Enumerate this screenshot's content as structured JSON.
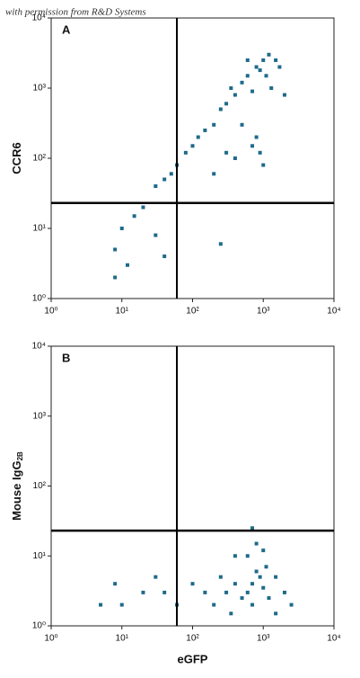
{
  "watermark": "with permission from R&D Systems",
  "chart_data": [
    {
      "type": "scatter",
      "panel_label": "A",
      "y_label": "CCR6",
      "color": "#1f6a8a",
      "log_x": true,
      "log_y": true,
      "xlim": [
        1,
        10000
      ],
      "ylim": [
        1,
        10000
      ],
      "xticks": [
        {
          "value": 1,
          "label": "10⁰"
        },
        {
          "value": 10,
          "label": "10¹"
        },
        {
          "value": 100,
          "label": "10²"
        },
        {
          "value": 1000,
          "label": "10³"
        },
        {
          "value": 10000,
          "label": "10⁴"
        }
      ],
      "yticks": [
        {
          "value": 1,
          "label": "10⁰"
        },
        {
          "value": 10,
          "label": "10¹"
        },
        {
          "value": 100,
          "label": "10²"
        },
        {
          "value": 1000,
          "label": "10³"
        },
        {
          "value": 10000,
          "label": "10⁴"
        }
      ],
      "gates": {
        "x": 60,
        "y": 23
      },
      "x": [
        800,
        1000,
        600,
        1200,
        500,
        900,
        1500,
        700,
        400,
        1100,
        300,
        250,
        200,
        150,
        120,
        100,
        80,
        60,
        50,
        40,
        30,
        700,
        900,
        800,
        500,
        400,
        1000,
        300,
        200,
        20,
        15,
        10,
        8,
        12,
        30,
        40,
        250,
        8,
        1300,
        2000,
        1700,
        600,
        350
      ],
      "y": [
        2000,
        2500,
        1500,
        3000,
        1200,
        1800,
        2500,
        900,
        800,
        1500,
        600,
        500,
        300,
        250,
        200,
        150,
        120,
        80,
        60,
        50,
        40,
        150,
        120,
        200,
        300,
        100,
        80,
        120,
        60,
        20,
        15,
        10,
        5,
        3,
        8,
        4,
        6,
        2,
        1000,
        800,
        2000,
        2500,
        1000
      ]
    },
    {
      "type": "scatter",
      "panel_label": "B",
      "y_label": "Mouse IgG",
      "y_label_sub": "2B",
      "x_label": "eGFP",
      "color": "#1f6a8a",
      "log_x": true,
      "log_y": true,
      "xlim": [
        1,
        10000
      ],
      "ylim": [
        1,
        10000
      ],
      "xticks": [
        {
          "value": 1,
          "label": "10⁰"
        },
        {
          "value": 10,
          "label": "10¹"
        },
        {
          "value": 100,
          "label": "10²"
        },
        {
          "value": 1000,
          "label": "10³"
        },
        {
          "value": 10000,
          "label": "10⁴"
        }
      ],
      "yticks": [
        {
          "value": 1,
          "label": "10⁰"
        },
        {
          "value": 10,
          "label": "10¹"
        },
        {
          "value": 100,
          "label": "10²"
        },
        {
          "value": 1000,
          "label": "10³"
        },
        {
          "value": 10000,
          "label": "10⁴"
        }
      ],
      "gates": {
        "x": 60,
        "y": 23
      },
      "x": [
        700,
        900,
        600,
        1000,
        500,
        800,
        400,
        1200,
        300,
        1500,
        200,
        700,
        1100,
        250,
        150,
        100,
        60,
        40,
        20,
        10,
        8,
        30,
        5,
        600,
        800,
        1000,
        400,
        2000,
        2500,
        700,
        1500,
        350
      ],
      "y": [
        4,
        5,
        3,
        3.5,
        2.5,
        6,
        4,
        2.5,
        3,
        5,
        2,
        2,
        7,
        5,
        3,
        4,
        2,
        3,
        3,
        2,
        4,
        5,
        2,
        10,
        15,
        12,
        10,
        3,
        2,
        25,
        1.5,
        1.5
      ]
    }
  ]
}
